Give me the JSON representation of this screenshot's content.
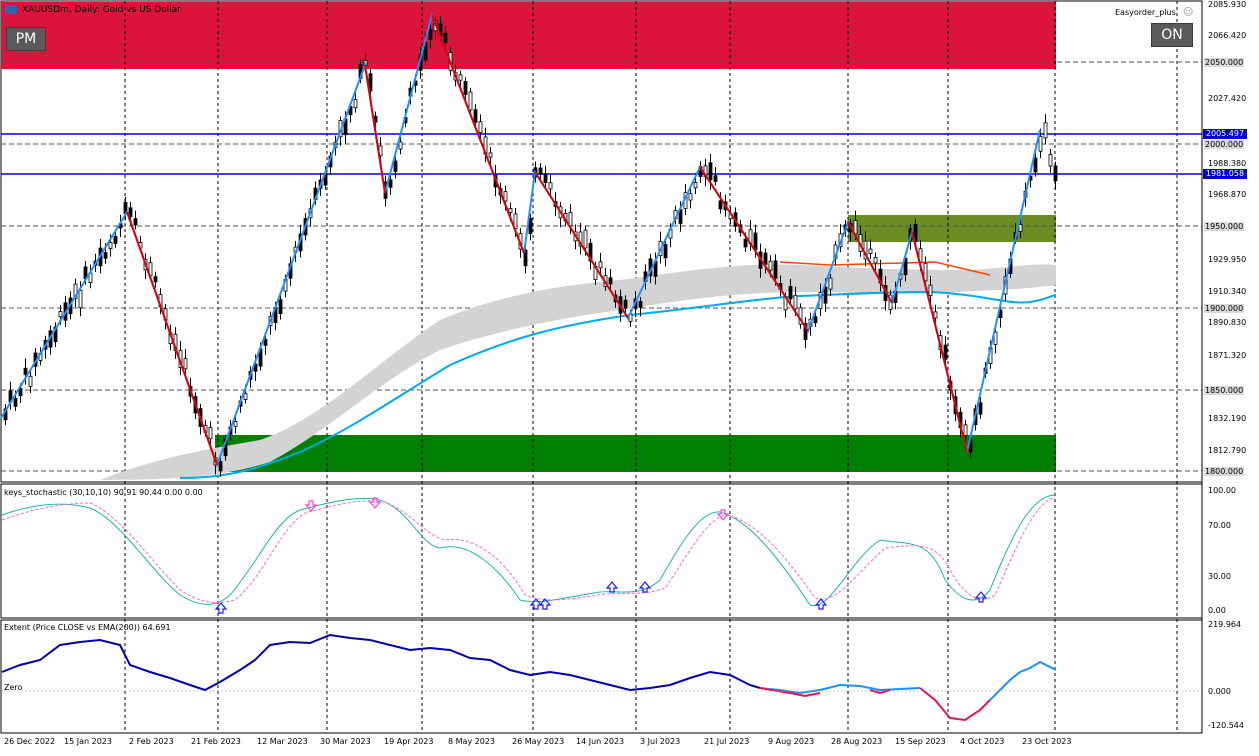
{
  "header": {
    "symbol_title": "XAUUSDm, Daily: Gold vs US Dollar",
    "pm_button": "PM",
    "on_button": "ON",
    "ea_label": "Easyorder_plus"
  },
  "price_axis": [
    "2085.930",
    "2066.420",
    "2050.000",
    "2027.420",
    "2005.497",
    "2000.000",
    "1988.380",
    "1981.058",
    "1968.870",
    "1950.000",
    "1929.950",
    "1910.340",
    "1900.000",
    "1890.830",
    "1871.320",
    "1850.000",
    "1832.190",
    "1812.790",
    "1800.000"
  ],
  "price_tags": {
    "blue_high": "2005.497",
    "blue_low": "1981.058"
  },
  "stochastic": {
    "label": "keys_stochastic (30,10,10) 90.91 90.44 0.00 0.00",
    "axis": [
      "100.00",
      "70.00",
      "30.00",
      "0.00"
    ]
  },
  "extent": {
    "label": "Extent (Price CLOSE vs EMA(200)) 64.691",
    "zero_label": "Zero",
    "axis": [
      "219.964",
      "0.000",
      "-120.544"
    ]
  },
  "dates": [
    "26 Dec 2022",
    "15 Jan 2023",
    "2 Feb 2023",
    "21 Feb 2023",
    "12 Mar 2023",
    "30 Mar 2023",
    "19 Apr 2023",
    "8 May 2023",
    "26 May 2023",
    "14 Jun 2023",
    "3 Jul 2023",
    "21 Jul 2023",
    "9 Aug 2023",
    "28 Aug 2023",
    "15 Sep 2023",
    "4 Oct 2023",
    "23 Oct 2023"
  ],
  "colors": {
    "supply_zone": "#dc143c",
    "demand_zone": "#008000",
    "olive_zone": "#6b8e23",
    "zigzag_up": "#1e90ff",
    "zigzag_down": "#e00000",
    "level_line": "#0000cd",
    "ema": "#00aaee",
    "stoch_main": "#20b2aa",
    "stoch_signal": "#ff66cc"
  }
}
